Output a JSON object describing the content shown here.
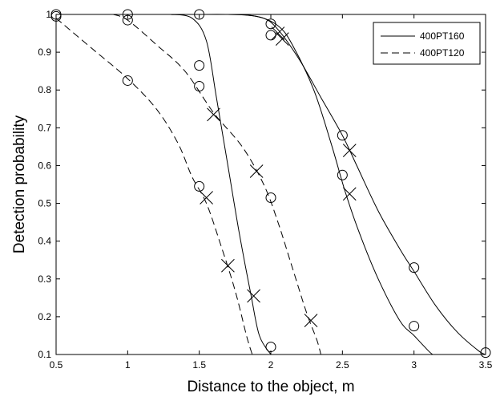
{
  "chart_data": {
    "type": "line",
    "title": "",
    "xlabel": "Distance to the object, m",
    "ylabel": "Detection probability",
    "xlim": [
      0.5,
      3.5
    ],
    "ylim": [
      0.1,
      1.0
    ],
    "xticks": [
      0.5,
      1,
      1.5,
      2,
      2.5,
      3,
      3.5
    ],
    "xtick_labels": [
      "0.5",
      "1",
      "1.5",
      "2",
      "2.5",
      "3",
      "3.5"
    ],
    "yticks": [
      0.1,
      0.2,
      0.3,
      0.4,
      0.5,
      0.6,
      0.7,
      0.8,
      0.9,
      1
    ],
    "ytick_labels": [
      "0.1",
      "0.2",
      "0.3",
      "0.4",
      "0.5",
      "0.6",
      "0.7",
      "0.8",
      "0.9",
      "1"
    ],
    "grid": false,
    "legend_position": "top-right",
    "legend": [
      {
        "label": "400PT160",
        "style": "solid"
      },
      {
        "label": "400PT120",
        "style": "dashed"
      }
    ],
    "curves": [
      {
        "style": "solid",
        "points": [
          [
            1.3,
            1.0
          ],
          [
            1.45,
            0.99
          ],
          [
            1.55,
            0.93
          ],
          [
            1.62,
            0.78
          ],
          [
            1.7,
            0.6
          ],
          [
            1.78,
            0.42
          ],
          [
            1.86,
            0.26
          ],
          [
            1.92,
            0.15
          ],
          [
            2.0,
            0.1
          ]
        ]
      },
      {
        "style": "solid",
        "points": [
          [
            1.5,
            1.0
          ],
          [
            1.7,
            1.0
          ],
          [
            1.9,
            0.995
          ],
          [
            2.05,
            0.97
          ],
          [
            2.15,
            0.92
          ],
          [
            2.3,
            0.8
          ],
          [
            2.42,
            0.66
          ],
          [
            2.52,
            0.53
          ],
          [
            2.62,
            0.42
          ],
          [
            2.75,
            0.3
          ],
          [
            2.9,
            0.19
          ],
          [
            3.0,
            0.15
          ],
          [
            3.1,
            0.11
          ],
          [
            3.13,
            0.1
          ]
        ]
      },
      {
        "style": "solid",
        "points": [
          [
            1.8,
            1.0
          ],
          [
            1.95,
            0.99
          ],
          [
            2.05,
            0.96
          ],
          [
            2.2,
            0.88
          ],
          [
            2.35,
            0.78
          ],
          [
            2.5,
            0.68
          ],
          [
            2.6,
            0.6
          ],
          [
            2.75,
            0.48
          ],
          [
            2.9,
            0.38
          ],
          [
            3.0,
            0.32
          ],
          [
            3.15,
            0.23
          ],
          [
            3.3,
            0.16
          ],
          [
            3.45,
            0.11
          ],
          [
            3.5,
            0.1
          ]
        ]
      },
      {
        "style": "dashed",
        "points": [
          [
            0.5,
            0.99
          ],
          [
            0.75,
            0.91
          ],
          [
            1.0,
            0.83
          ],
          [
            1.2,
            0.75
          ],
          [
            1.35,
            0.66
          ],
          [
            1.45,
            0.57
          ],
          [
            1.55,
            0.5
          ],
          [
            1.65,
            0.39
          ],
          [
            1.75,
            0.27
          ],
          [
            1.83,
            0.15
          ],
          [
            1.87,
            0.1
          ]
        ]
      },
      {
        "style": "dashed",
        "points": [
          [
            0.9,
            1.0
          ],
          [
            1.0,
            0.985
          ],
          [
            1.2,
            0.92
          ],
          [
            1.4,
            0.85
          ],
          [
            1.6,
            0.74
          ],
          [
            1.8,
            0.65
          ],
          [
            1.95,
            0.55
          ],
          [
            2.05,
            0.45
          ],
          [
            2.15,
            0.33
          ],
          [
            2.25,
            0.21
          ],
          [
            2.32,
            0.14
          ],
          [
            2.35,
            0.1
          ]
        ]
      }
    ],
    "circle_markers": [
      [
        0.5,
        1.0
      ],
      [
        0.5,
        0.995
      ],
      [
        1.0,
        1.0
      ],
      [
        1.0,
        0.985
      ],
      [
        1.0,
        0.825
      ],
      [
        1.5,
        1.0
      ],
      [
        1.5,
        0.865
      ],
      [
        1.5,
        0.81
      ],
      [
        1.5,
        0.545
      ],
      [
        2.0,
        0.975
      ],
      [
        2.0,
        0.945
      ],
      [
        2.0,
        0.515
      ],
      [
        2.0,
        0.12
      ],
      [
        2.5,
        0.68
      ],
      [
        2.5,
        0.575
      ],
      [
        3.0,
        0.33
      ],
      [
        3.0,
        0.175
      ],
      [
        3.5,
        0.105
      ]
    ],
    "cross_markers": [
      [
        2.05,
        0.95
      ],
      [
        2.08,
        0.935
      ],
      [
        1.6,
        0.735
      ],
      [
        2.55,
        0.64
      ],
      [
        2.55,
        0.525
      ],
      [
        1.9,
        0.585
      ],
      [
        1.55,
        0.515
      ],
      [
        1.7,
        0.335
      ],
      [
        1.88,
        0.255
      ],
      [
        2.28,
        0.19
      ]
    ]
  }
}
